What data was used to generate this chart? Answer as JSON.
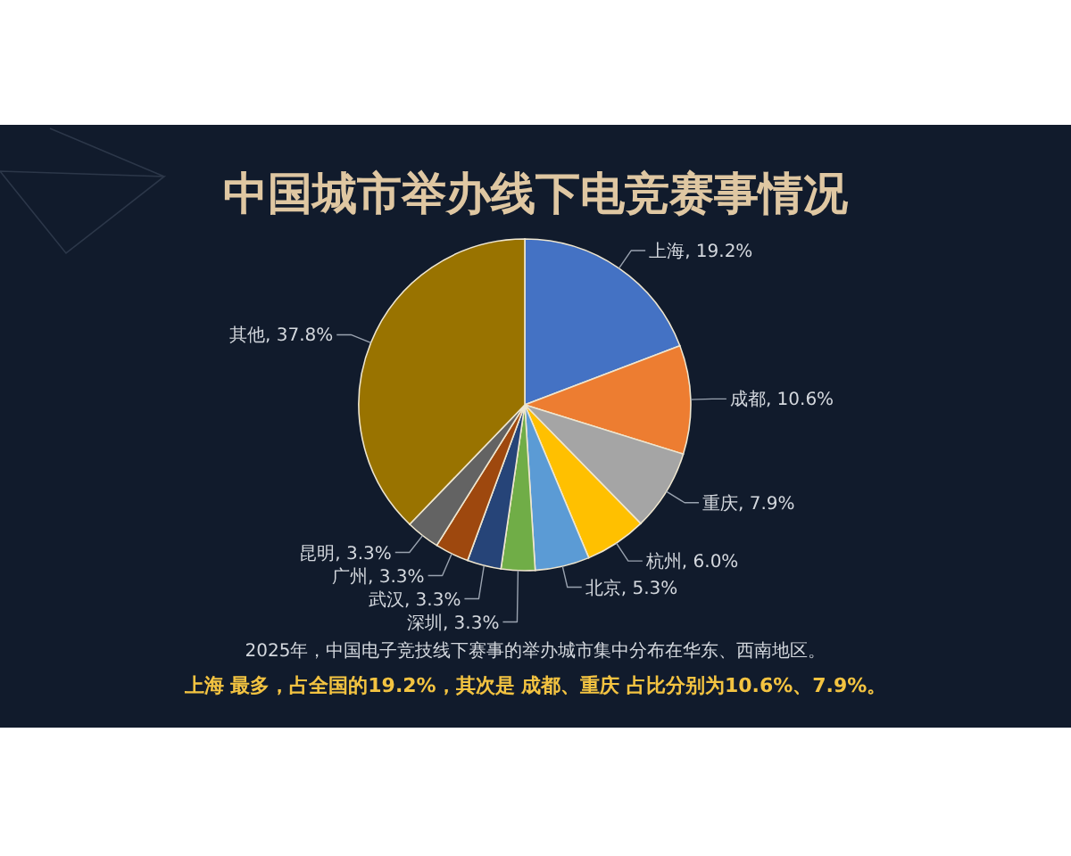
{
  "chart_data": {
    "type": "pie",
    "title": "中国城市举办线下电竞赛事情况",
    "categories": [
      "上海",
      "成都",
      "重庆",
      "杭州",
      "北京",
      "深圳",
      "武汉",
      "广州",
      "昆明",
      "其他"
    ],
    "values": [
      19.2,
      10.6,
      7.9,
      6.0,
      5.3,
      3.3,
      3.3,
      3.3,
      3.3,
      37.8
    ],
    "colors": [
      "#4472c4",
      "#ed7d31",
      "#a5a5a5",
      "#ffc000",
      "#5b9bd5",
      "#70ad47",
      "#264478",
      "#9e480e",
      "#636363",
      "#997300"
    ],
    "value_labels": [
      "19.2%",
      "10.6%",
      "7.9%",
      "6.0%",
      "5.3%",
      "3.3%",
      "3.3%",
      "3.3%",
      "3.3%",
      "37.8%"
    ],
    "annotations": [
      "2025年，中国电子竞技线下赛事的举办城市集中分布在华东、西南地区。",
      "上海 最多，占全国的19.2%，其次是 成都、重庆 占比分别为10.6%、7.9%。"
    ]
  }
}
